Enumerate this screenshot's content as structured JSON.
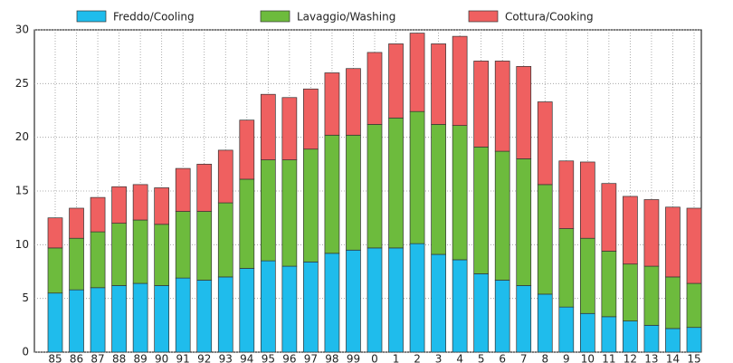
{
  "chart_data": {
    "type": "stacked_bar",
    "categories": [
      "85",
      "86",
      "87",
      "88",
      "89",
      "90",
      "91",
      "92",
      "93",
      "94",
      "95",
      "96",
      "97",
      "98",
      "99",
      "0",
      "1",
      "2",
      "3",
      "4",
      "5",
      "6",
      "7",
      "8",
      "9",
      "10",
      "11",
      "12",
      "13",
      "14",
      "15"
    ],
    "series": [
      {
        "name": "Freddo/Cooling",
        "color": "#1fbcec",
        "values": [
          5.5,
          5.8,
          6.0,
          6.2,
          6.4,
          6.2,
          6.9,
          6.7,
          7.0,
          7.8,
          8.5,
          8.0,
          8.4,
          9.2,
          9.5,
          9.7,
          9.7,
          10.1,
          9.1,
          8.6,
          7.3,
          6.7,
          6.2,
          5.4,
          4.2,
          3.6,
          3.3,
          2.9,
          2.5,
          2.2,
          2.3
        ]
      },
      {
        "name": "Lavaggio/Washing",
        "color": "#6dbb3d",
        "values": [
          4.2,
          4.8,
          5.2,
          5.8,
          5.9,
          5.7,
          6.2,
          6.4,
          6.9,
          8.3,
          9.4,
          9.9,
          10.5,
          11.0,
          10.7,
          11.5,
          12.1,
          12.3,
          12.1,
          12.5,
          11.8,
          12.0,
          11.8,
          10.2,
          7.3,
          7.0,
          6.1,
          5.3,
          5.5,
          4.8,
          4.1
        ]
      },
      {
        "name": "Cottura/Cooking",
        "color": "#ef6060",
        "values": [
          2.8,
          2.8,
          3.2,
          3.4,
          3.3,
          3.4,
          4.0,
          4.4,
          4.9,
          5.5,
          6.1,
          5.8,
          5.6,
          5.8,
          6.2,
          6.7,
          6.9,
          7.3,
          7.5,
          8.3,
          8.0,
          8.4,
          8.6,
          7.7,
          6.3,
          7.1,
          6.3,
          6.3,
          6.2,
          6.5,
          7.0
        ]
      }
    ],
    "ylim": [
      0,
      30
    ],
    "yticks": [
      0,
      5,
      10,
      15,
      20,
      25,
      30
    ],
    "grid": true,
    "legend": "top"
  }
}
